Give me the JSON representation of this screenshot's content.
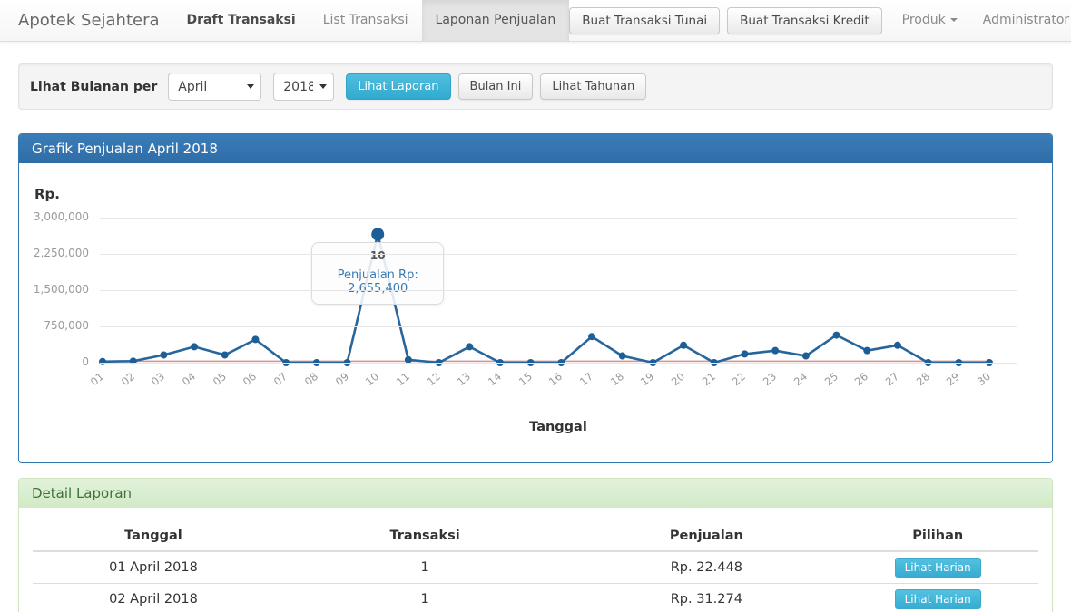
{
  "navbar": {
    "brand": "Apotek Sejahtera",
    "items": [
      {
        "label": "Draft Transaksi"
      },
      {
        "label": "List Transaksi"
      },
      {
        "label": "Laponan Penjualan"
      }
    ],
    "buttons": [
      "Buat Transaksi Tunai",
      "Buat Transaksi Kredit"
    ],
    "dropdowns": [
      "Produk",
      "Administrator"
    ]
  },
  "filter": {
    "label": "Lihat Bulanan per",
    "month_select": {
      "value": "April"
    },
    "year_select": {
      "value": "2018"
    },
    "view_report_button": "Lihat Laporan",
    "this_month_button": "Bulan Ini",
    "view_yearly_button": "Lihat Tahunan"
  },
  "chart_panel": {
    "title": "Grafik Penjualan April 2018",
    "y_unit": "Rp.",
    "x_label": "Tanggal"
  },
  "chart_data": {
    "type": "line",
    "title": "Grafik Penjualan April 2018",
    "xlabel": "Tanggal",
    "ylabel": "Rp.",
    "grid": true,
    "x": [
      "01",
      "02",
      "03",
      "04",
      "05",
      "06",
      "07",
      "08",
      "09",
      "10",
      "11",
      "12",
      "13",
      "14",
      "15",
      "16",
      "17",
      "18",
      "19",
      "20",
      "21",
      "22",
      "23",
      "24",
      "25",
      "26",
      "27",
      "28",
      "29",
      "30"
    ],
    "series": [
      {
        "name": "Penjualan",
        "color": "#27659d",
        "point_color": "#1d5e97",
        "values": [
          22448,
          31274,
          160000,
          330000,
          160000,
          480000,
          0,
          0,
          0,
          2655400,
          60000,
          0,
          330000,
          0,
          0,
          0,
          540000,
          140000,
          0,
          360000,
          0,
          180000,
          250000,
          140000,
          570000,
          250000,
          360000,
          0,
          0,
          0
        ]
      }
    ],
    "reference_line": {
      "value": 30000,
      "color": "#dd8f8f"
    },
    "ylim": [
      0,
      3000000
    ],
    "yticks": [
      0,
      750000,
      1500000,
      2250000,
      3000000
    ],
    "ytick_labels": [
      "0",
      "750,000",
      "1,500,000",
      "2,250,000",
      "3,000,000"
    ],
    "tooltip": {
      "day": "10",
      "text": "Penjualan Rp: 2,655,400",
      "value": 2655400
    }
  },
  "detail_panel": {
    "title": "Detail Laporan",
    "table": {
      "headers": [
        "Tanggal",
        "Transaksi",
        "Penjualan",
        "Pilihan"
      ],
      "rows": [
        {
          "tanggal": "01 April 2018",
          "transaksi": "1",
          "penjualan": "Rp. 22.448",
          "action": "Lihat Harian"
        },
        {
          "tanggal": "02 April 2018",
          "transaksi": "1",
          "penjualan": "Rp. 31.274",
          "action": "Lihat Harian"
        }
      ]
    }
  },
  "colors": {
    "accent_blue": "#2f6da7",
    "info_cyan": "#41b9da",
    "success_green_bg": "#dff0d8",
    "success_green_text": "#3f7140",
    "line_blue": "#27659d",
    "reference_red": "#dd8f8f",
    "grid_gray": "#e6e6e6"
  }
}
